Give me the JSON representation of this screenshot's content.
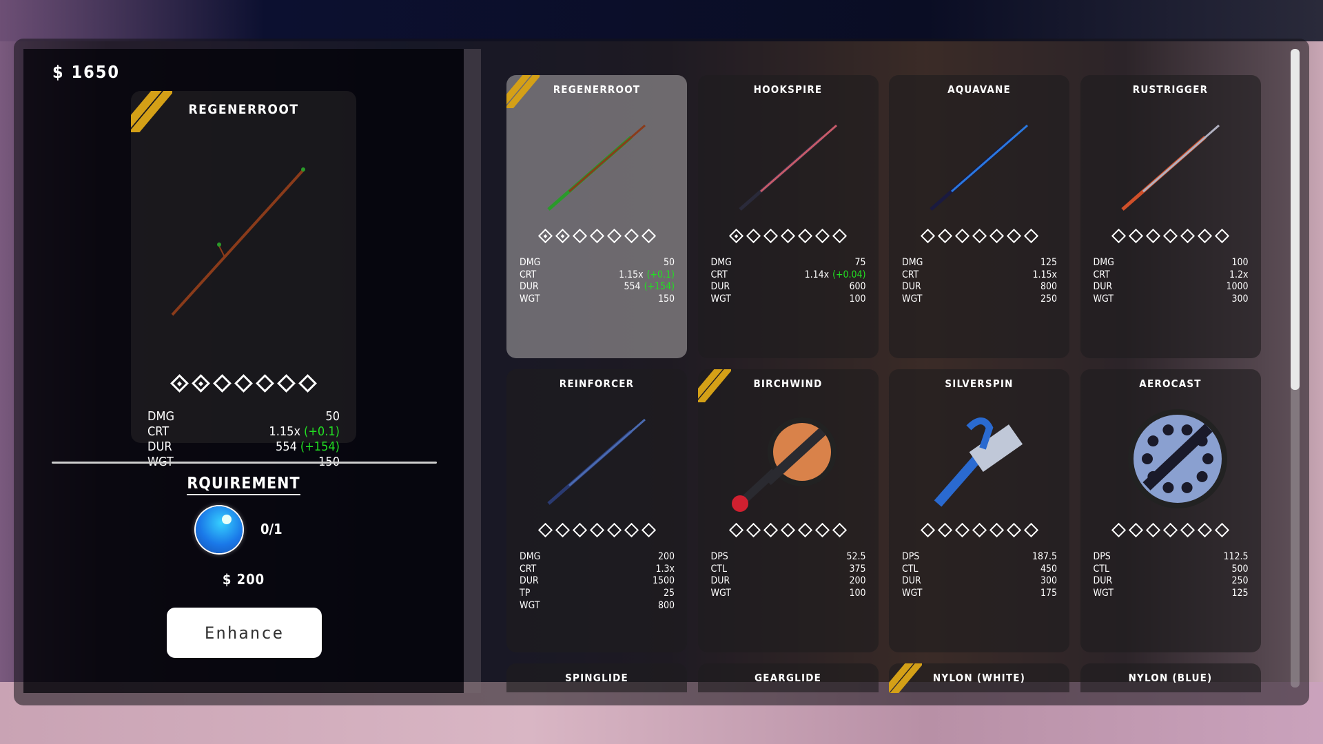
{
  "wallet": {
    "money": "$ 1650"
  },
  "selected": {
    "name": "REGENERROOT",
    "icon": "regenerroot-rod-icon",
    "level": 2,
    "max_level": 7,
    "badge": true,
    "stats": [
      {
        "label": "DMG",
        "value": "50",
        "bonus": ""
      },
      {
        "label": "CRT",
        "value": "1.15x",
        "bonus": "(+0.1)"
      },
      {
        "label": "DUR",
        "value": "554",
        "bonus": "(+154)"
      },
      {
        "label": "WGT",
        "value": "150",
        "bonus": ""
      }
    ]
  },
  "requirement": {
    "title": "RQUIREMENT",
    "item_icon": "blue-orb-icon",
    "count": "0/1",
    "cost": "$ 200"
  },
  "enhance_button": "Enhance",
  "colors": {
    "badge": "#d4a017",
    "bonus": "#22e022"
  },
  "scroll": {
    "position": 0
  },
  "items": [
    {
      "name": "REGENERROOT",
      "icon": "rod",
      "color": "#8a3b1a",
      "tip": "#2a9a2a",
      "selected": true,
      "badge": true,
      "level": 2,
      "stats": [
        {
          "label": "DMG",
          "value": "50",
          "bonus": ""
        },
        {
          "label": "CRT",
          "value": "1.15x",
          "bonus": "(+0.1)"
        },
        {
          "label": "DUR",
          "value": "554",
          "bonus": "(+154)"
        },
        {
          "label": "WGT",
          "value": "150",
          "bonus": ""
        }
      ]
    },
    {
      "name": "HOOKSPIRE",
      "icon": "rod",
      "color": "#c65a6a",
      "tip": "#2a2a3a",
      "level": 1,
      "stats": [
        {
          "label": "DMG",
          "value": "75",
          "bonus": ""
        },
        {
          "label": "CRT",
          "value": "1.14x",
          "bonus": "(+0.04)"
        },
        {
          "label": "DUR",
          "value": "600",
          "bonus": ""
        },
        {
          "label": "WGT",
          "value": "100",
          "bonus": ""
        }
      ]
    },
    {
      "name": "AQUAVANE",
      "icon": "rod",
      "color": "#2a78e0",
      "tip": "#1a1a40",
      "level": 0,
      "stats": [
        {
          "label": "DMG",
          "value": "125",
          "bonus": ""
        },
        {
          "label": "CRT",
          "value": "1.15x",
          "bonus": ""
        },
        {
          "label": "DUR",
          "value": "800",
          "bonus": ""
        },
        {
          "label": "WGT",
          "value": "250",
          "bonus": ""
        }
      ]
    },
    {
      "name": "RUSTRIGGER",
      "icon": "rod",
      "color": "#b0b0c0",
      "tip": "#d0502a",
      "level": 0,
      "stats": [
        {
          "label": "DMG",
          "value": "100",
          "bonus": ""
        },
        {
          "label": "CRT",
          "value": "1.2x",
          "bonus": ""
        },
        {
          "label": "DUR",
          "value": "1000",
          "bonus": ""
        },
        {
          "label": "WGT",
          "value": "300",
          "bonus": ""
        }
      ]
    },
    {
      "name": "REINFORCER",
      "icon": "rod",
      "color": "#4a6ab0",
      "tip": "#2a3a70",
      "level": 0,
      "stats": [
        {
          "label": "DMG",
          "value": "200",
          "bonus": ""
        },
        {
          "label": "CRT",
          "value": "1.3x",
          "bonus": ""
        },
        {
          "label": "DUR",
          "value": "1500",
          "bonus": ""
        },
        {
          "label": "TP",
          "value": "25",
          "bonus": ""
        },
        {
          "label": "WGT",
          "value": "800",
          "bonus": ""
        }
      ]
    },
    {
      "name": "BIRCHWIND",
      "icon": "reel-wood",
      "color": "#d9824a",
      "tip": "#d02030",
      "badge": true,
      "level": 0,
      "stats": [
        {
          "label": "DPS",
          "value": "52.5",
          "bonus": ""
        },
        {
          "label": "CTL",
          "value": "375",
          "bonus": ""
        },
        {
          "label": "DUR",
          "value": "200",
          "bonus": ""
        },
        {
          "label": "WGT",
          "value": "100",
          "bonus": ""
        }
      ]
    },
    {
      "name": "SILVERSPIN",
      "icon": "reel-spin",
      "color": "#2a6ad0",
      "tip": "#c0c8d8",
      "level": 0,
      "stats": [
        {
          "label": "DPS",
          "value": "187.5",
          "bonus": ""
        },
        {
          "label": "CTL",
          "value": "450",
          "bonus": ""
        },
        {
          "label": "DUR",
          "value": "300",
          "bonus": ""
        },
        {
          "label": "WGT",
          "value": "175",
          "bonus": ""
        }
      ]
    },
    {
      "name": "AEROCAST",
      "icon": "reel-disc",
      "color": "#8aa0d0",
      "tip": "#1a1a2a",
      "level": 0,
      "stats": [
        {
          "label": "DPS",
          "value": "112.5",
          "bonus": ""
        },
        {
          "label": "CTL",
          "value": "500",
          "bonus": ""
        },
        {
          "label": "DUR",
          "value": "250",
          "bonus": ""
        },
        {
          "label": "WGT",
          "value": "125",
          "bonus": ""
        }
      ]
    },
    {
      "name": "SPINGLIDE",
      "level": 0,
      "stats": []
    },
    {
      "name": "GEARGLIDE",
      "level": 0,
      "stats": []
    },
    {
      "name": "NYLON (WHITE)",
      "badge": true,
      "level": 0,
      "stats": []
    },
    {
      "name": "NYLON (BLUE)",
      "level": 0,
      "stats": []
    }
  ]
}
